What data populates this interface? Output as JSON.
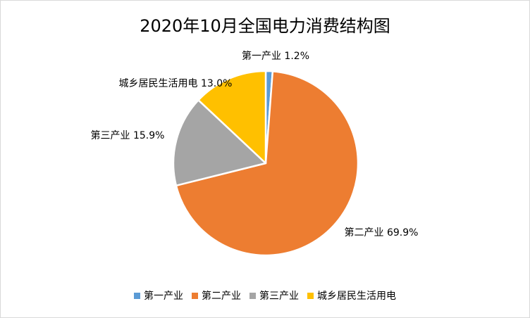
{
  "chart_data": {
    "type": "pie",
    "title": "2020年10月全国电力消费结构图",
    "categories": [
      "第一产业",
      "第二产业",
      "第三产业",
      "城乡居民生活用电"
    ],
    "values": [
      1.2,
      69.9,
      15.9,
      13.0
    ],
    "data_labels": [
      "第一产业 1.2%",
      "第二产业 69.9%",
      "第三产业 15.9%",
      "城乡居民生活用电 13.0%"
    ],
    "colors": [
      "#5b9bd5",
      "#ed7d31",
      "#a5a5a5",
      "#ffc000"
    ],
    "legend": "bottom"
  }
}
